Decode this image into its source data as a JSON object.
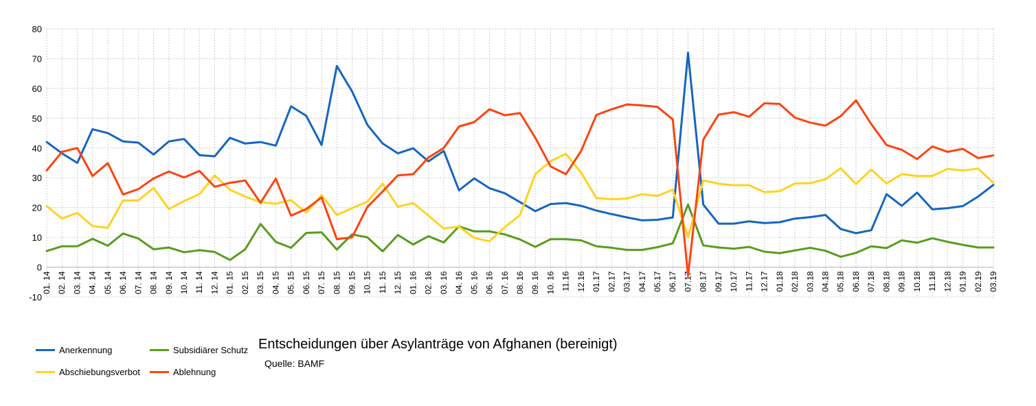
{
  "chart_data": {
    "type": "line",
    "title": "Entscheidungen über Asylanträge von Afghanen (bereinigt)",
    "subtitle": "Quelle: BAMF",
    "xlabel": "",
    "ylabel": "",
    "ylim": [
      -10,
      80
    ],
    "yticks": [
      -10,
      0,
      10,
      20,
      30,
      40,
      50,
      60,
      70,
      80
    ],
    "grid": true,
    "legend_position": "bottom-left",
    "categories": [
      "01. 14",
      "02. 14",
      "03. 14",
      "04. 14",
      "05. 14",
      "06. 14",
      "07. 14",
      "08. 14",
      "09. 14",
      "10. 14",
      "11. 14",
      "12. 14",
      "01. 15",
      "02. 15",
      "03. 15",
      "04. 15",
      "05. 15",
      "06. 15",
      "07. 15",
      "08. 15",
      "09. 15",
      "10. 15",
      "11. 15",
      "12. 15",
      "01. 16",
      "02. 16",
      "03. 16",
      "04. 16",
      "05. 16",
      "06. 16",
      "07. 16",
      "08. 16",
      "09. 16",
      "10. 16",
      "11.16",
      "12.16",
      "01.17",
      "02.17",
      "03.17",
      "04.17",
      "05.17",
      "06.17",
      "07.17",
      "08.17",
      "09.17",
      "10.17",
      "11.17",
      "12.17",
      "01.18",
      "02.18",
      "03.18",
      "04.18",
      "05.18",
      "06.18",
      "07.18",
      "08.18",
      "09.18",
      "10.18",
      "11.18",
      "12.18",
      "01.19",
      "02.19",
      "03.19"
    ],
    "series": [
      {
        "name": "Anerkennung",
        "color": "#1565c0",
        "values": [
          42.0,
          38.2,
          35.0,
          46.3,
          45.0,
          42.2,
          41.8,
          37.8,
          42.2,
          43.0,
          37.6,
          37.2,
          43.4,
          41.5,
          42.0,
          40.8,
          54.0,
          50.8,
          41.0,
          67.5,
          59.0,
          47.8,
          41.5,
          38.2,
          39.9,
          35.5,
          39.0,
          25.8,
          29.8,
          26.5,
          24.8,
          21.8,
          18.8,
          21.2,
          21.5,
          20.6,
          19.0,
          17.8,
          16.7,
          15.7,
          15.9,
          16.7,
          72.0,
          21.0,
          14.6,
          14.6,
          15.4,
          14.8,
          15.1,
          16.3,
          16.8,
          17.5,
          12.8,
          11.4,
          12.4,
          24.5,
          20.6,
          25.0,
          19.4,
          19.8,
          20.5,
          23.7,
          27.6
        ]
      },
      {
        "name": "Subsidiärer Schutz",
        "color": "#579d1c",
        "values": [
          5.4,
          7.0,
          7.0,
          9.5,
          7.2,
          11.3,
          9.6,
          6.0,
          6.6,
          5.0,
          5.7,
          5.1,
          2.4,
          6.0,
          14.5,
          8.5,
          6.5,
          11.5,
          11.7,
          5.9,
          11.0,
          10.0,
          5.3,
          10.8,
          7.6,
          10.4,
          8.3,
          13.7,
          12.0,
          12.0,
          11.0,
          9.3,
          6.8,
          9.4,
          9.4,
          9.0,
          7.0,
          6.5,
          5.8,
          5.8,
          6.7,
          8.0,
          21.0,
          7.3,
          6.6,
          6.2,
          6.8,
          5.2,
          4.7,
          5.6,
          6.5,
          5.5,
          3.5,
          4.8,
          7.0,
          6.4,
          9.0,
          8.2,
          9.7,
          8.5,
          7.5,
          6.6,
          6.6
        ]
      },
      {
        "name": "Abschiebungsverbot",
        "color": "#ffd320",
        "values": [
          20.5,
          16.3,
          18.2,
          13.8,
          13.2,
          22.4,
          22.4,
          26.6,
          19.5,
          22.2,
          24.5,
          30.8,
          26.0,
          23.7,
          21.8,
          21.3,
          22.5,
          18.3,
          24.2,
          17.5,
          19.8,
          22.0,
          28.0,
          20.3,
          21.5,
          17.3,
          13.0,
          13.6,
          9.8,
          8.7,
          13.4,
          17.5,
          31.2,
          35.6,
          38.0,
          31.7,
          23.2,
          22.8,
          23.0,
          24.5,
          23.9,
          26.0,
          10.0,
          29.1,
          28.0,
          27.5,
          27.5,
          25.2,
          25.5,
          28.1,
          28.2,
          29.5,
          33.2,
          27.9,
          32.8,
          28.1,
          31.2,
          30.6,
          30.6,
          33.0,
          32.4,
          33.1,
          28.3
        ]
      },
      {
        "name": "Ablehnung",
        "color": "#ff420e",
        "values": [
          32.5,
          38.7,
          40.0,
          30.6,
          34.9,
          24.4,
          26.2,
          29.8,
          32.1,
          30.1,
          32.3,
          27.0,
          28.3,
          29.1,
          21.6,
          29.7,
          17.3,
          19.5,
          23.4,
          9.4,
          10.0,
          20.2,
          25.4,
          30.8,
          31.2,
          36.8,
          40.0,
          47.2,
          48.7,
          53.0,
          51.0,
          51.7,
          43.4,
          33.8,
          31.2,
          39.0,
          51.1,
          53.0,
          54.6,
          54.3,
          53.8,
          49.6,
          -2.9,
          42.8,
          51.2,
          52.0,
          50.5,
          55.0,
          54.8,
          50.2,
          48.5,
          47.5,
          50.7,
          56.0,
          48.0,
          41.0,
          39.4,
          36.3,
          40.5,
          38.7,
          39.7,
          36.6,
          37.5
        ]
      }
    ]
  }
}
